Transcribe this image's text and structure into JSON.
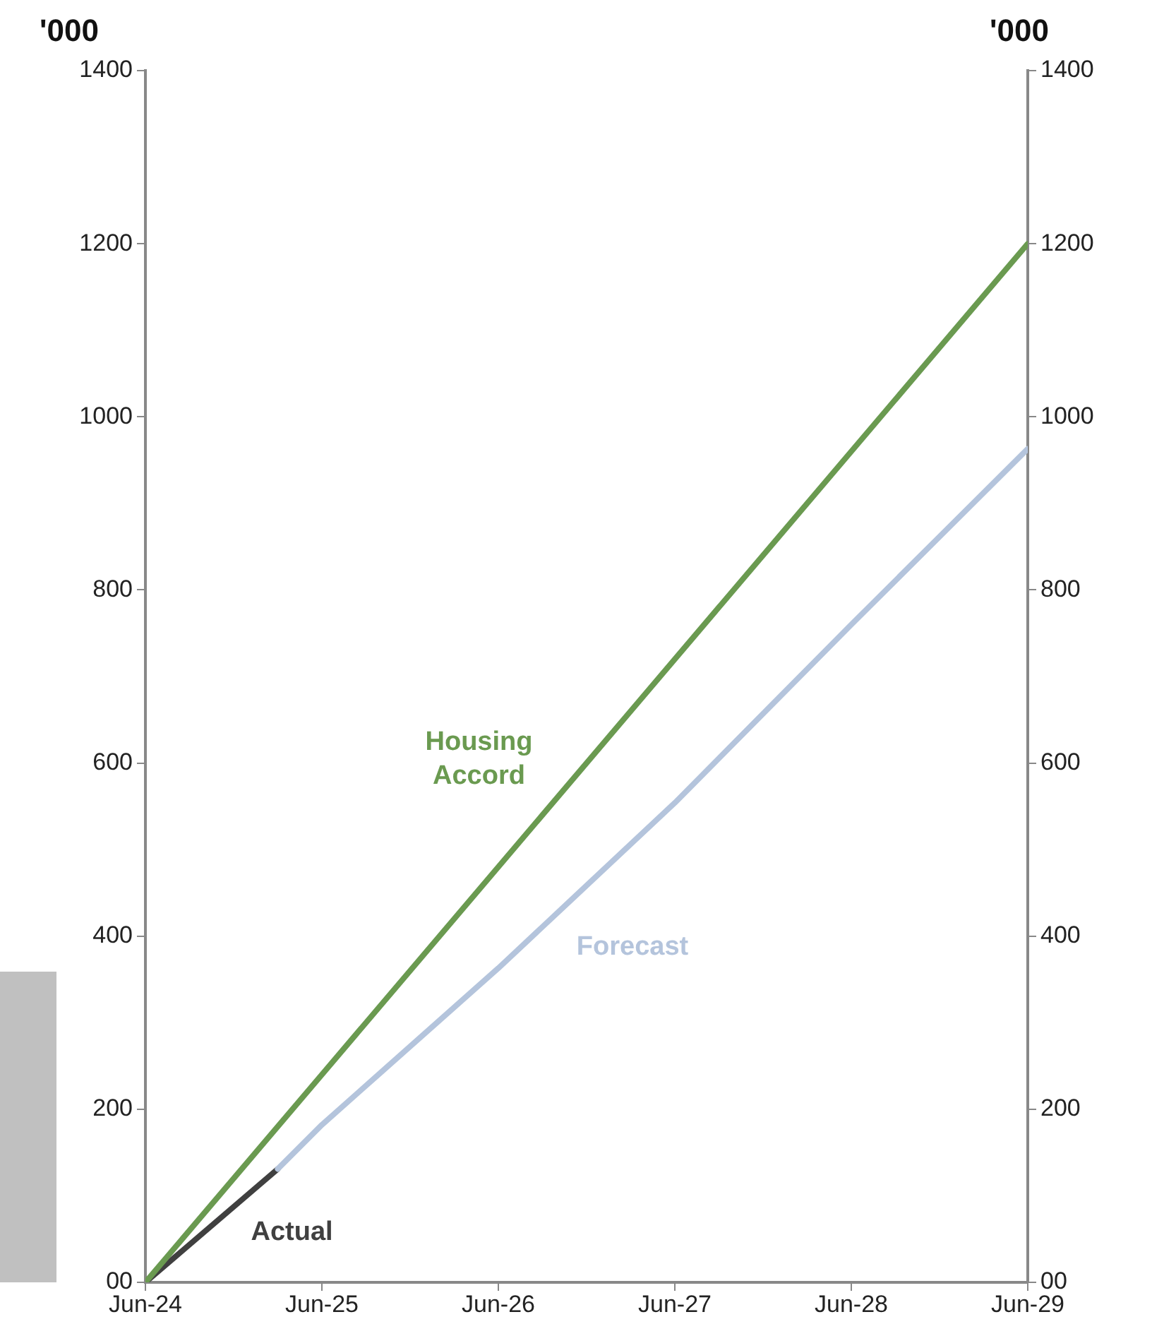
{
  "chart_data": {
    "type": "line",
    "ylabel": "'000",
    "y2label": "'000",
    "xlim": [
      "2024-06",
      "2029-06"
    ],
    "xticks": [
      {
        "value": "2024-06",
        "label": "Jun-24"
      },
      {
        "value": "2025-06",
        "label": "Jun-25"
      },
      {
        "value": "2026-06",
        "label": "Jun-26"
      },
      {
        "value": "2027-06",
        "label": "Jun-27"
      },
      {
        "value": "2028-06",
        "label": "Jun-28"
      },
      {
        "value": "2029-06",
        "label": "Jun-29"
      }
    ],
    "ylim": [
      0,
      1400
    ],
    "yticks": [
      {
        "value": 0,
        "label": "00"
      },
      200,
      400,
      600,
      800,
      1000,
      1200,
      1400
    ],
    "y2lim": [
      0,
      1400
    ],
    "y2ticks": [
      {
        "value": 0,
        "label": "00"
      },
      200,
      400,
      600,
      800,
      1000,
      1200,
      1400
    ],
    "grid": false,
    "legend": false,
    "marker": "none",
    "line_style": "solid",
    "series": [
      {
        "name": "Housing Accord",
        "color": "#6a9a50",
        "x": [
          "2024-06",
          "2029-06"
        ],
        "values": [
          0,
          1200
        ]
      },
      {
        "name": "Forecast",
        "color": "#b4c4dc",
        "x": [
          "2025-03",
          "2025-06",
          "2026-06",
          "2027-06",
          "2028-06",
          "2029-06"
        ],
        "values": [
          131,
          182,
          363,
          554,
          760,
          963
        ]
      },
      {
        "name": "Actual",
        "color": "#404040",
        "x": [
          "2024-06",
          "2025-03"
        ],
        "values": [
          0,
          131
        ]
      }
    ]
  }
}
